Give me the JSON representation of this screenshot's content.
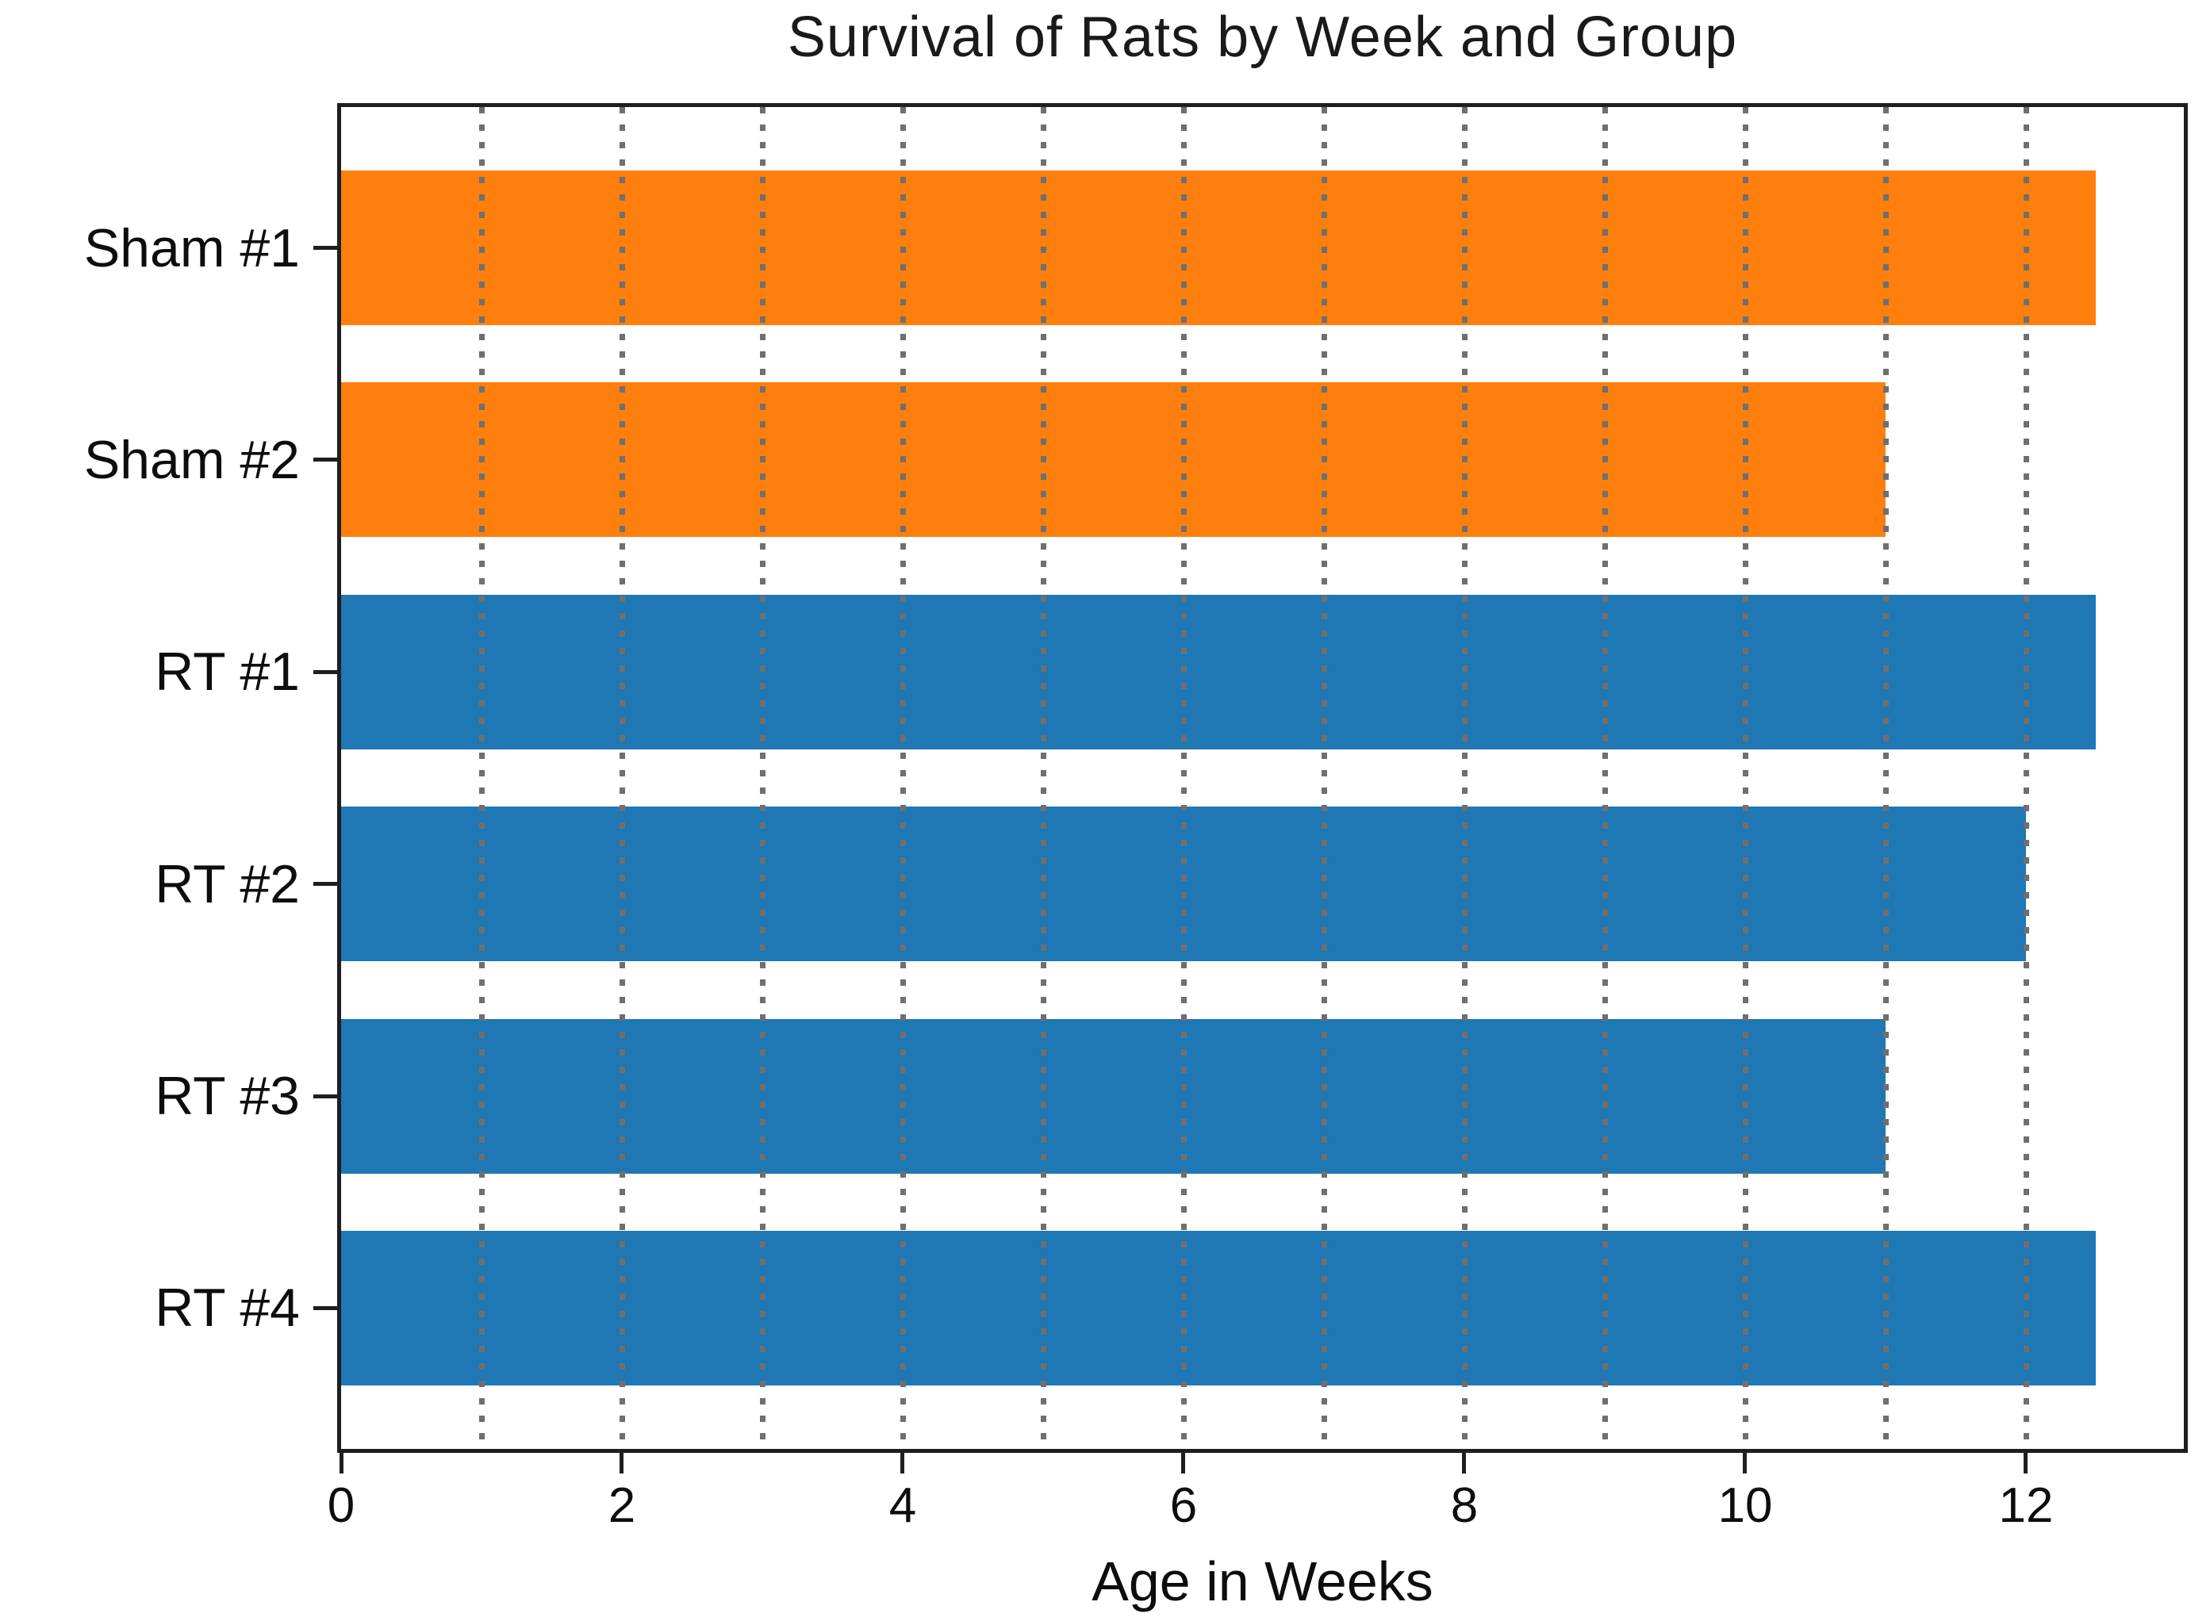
{
  "chart_data": {
    "type": "bar",
    "orientation": "horizontal",
    "title": "Survival of Rats by Week and Group",
    "xlabel": "Age in Weeks",
    "ylabel": "",
    "categories": [
      "Sham #1",
      "Sham #2",
      "RT #1",
      "RT #2",
      "RT #3",
      "RT #4"
    ],
    "values": [
      12.5,
      11,
      12.5,
      12,
      11,
      12.5
    ],
    "groups": [
      "Sham",
      "Sham",
      "RT",
      "RT",
      "RT",
      "RT"
    ],
    "bar_colors": [
      "#ff7f0e",
      "#ff7f0e",
      "#1f77b4",
      "#1f77b4",
      "#1f77b4",
      "#1f77b4"
    ],
    "xlim": [
      0,
      13.125
    ],
    "xtick_values": [
      0,
      2,
      4,
      6,
      8,
      10,
      12
    ],
    "xtick_labels": [
      "0",
      "2",
      "4",
      "6",
      "8",
      "10",
      "12"
    ],
    "grid": {
      "show": true,
      "weeks": [
        1,
        2,
        3,
        4,
        5,
        6,
        7,
        8,
        9,
        10,
        11,
        12
      ],
      "style": "dotted",
      "color": "#6f6f6f",
      "drawn_above_bars": true
    },
    "legend": {
      "show": false
    },
    "colors": {
      "sham_orange": "#ff7f0e",
      "rt_blue": "#1f77b4",
      "spine": "#1f1f1f",
      "text": "#0d0d0d"
    }
  }
}
